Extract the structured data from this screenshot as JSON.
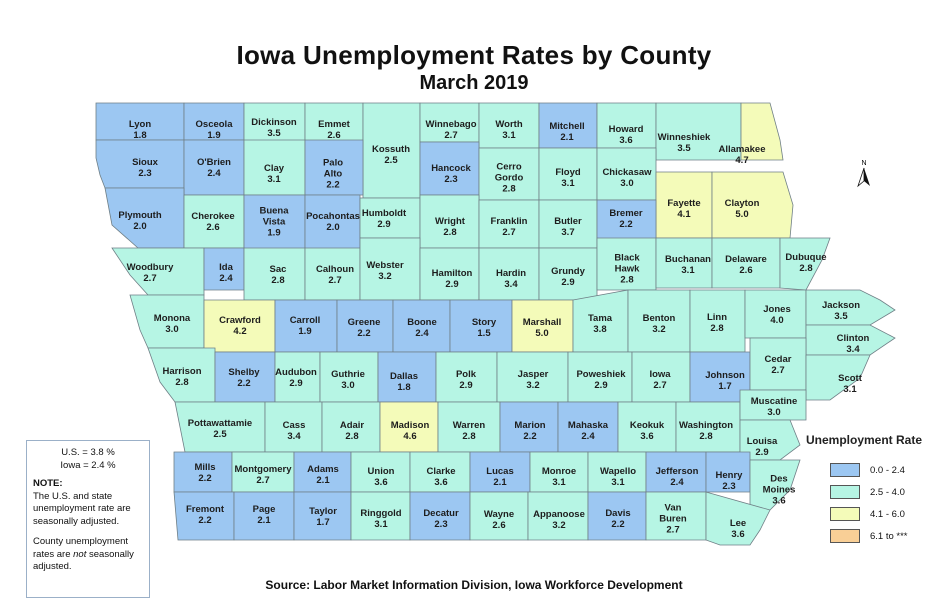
{
  "title": "Iowa Unemployment Rates by County",
  "subtitle": "March 2019",
  "source": "Source: Labor Market Information Division, Iowa Workforce Development",
  "north_label": "N",
  "note": {
    "us_rate": "U.S. = 3.8 %",
    "iowa_rate": "Iowa = 2.4 %",
    "heading": "NOTE:",
    "text1": "The U.S. and state unemployment rate are seasonally adjusted.",
    "text2_a": "County unemployment rates are ",
    "text2_em": "not",
    "text2_b": " seasonally adjusted."
  },
  "legend": {
    "title": "Unemployment Rate",
    "items": [
      {
        "label": "0.0 - 2.4",
        "color": "#9cc7f2"
      },
      {
        "label": "2.5 - 4.0",
        "color": "#b6f5e4"
      },
      {
        "label": "4.1 - 6.0",
        "color": "#f4fbb9"
      },
      {
        "label": "6.1 to ***",
        "color": "#f9cf96"
      }
    ]
  },
  "counties": [
    {
      "name": "Lyon",
      "value": "1.8"
    },
    {
      "name": "Osceola",
      "value": "1.9"
    },
    {
      "name": "Dickinson",
      "value": "3.5"
    },
    {
      "name": "Emmet",
      "value": "2.6"
    },
    {
      "name": "Kossuth",
      "value": "2.5"
    },
    {
      "name": "Winnebago",
      "value": "2.7"
    },
    {
      "name": "Worth",
      "value": "3.1"
    },
    {
      "name": "Mitchell",
      "value": "2.1"
    },
    {
      "name": "Howard",
      "value": "3.6"
    },
    {
      "name": "Winneshiek",
      "value": "3.5"
    },
    {
      "name": "Allamakee",
      "value": "4.7"
    },
    {
      "name": "Sioux",
      "value": "2.3"
    },
    {
      "name": "O'Brien",
      "value": "2.4"
    },
    {
      "name": "Clay",
      "value": "3.1"
    },
    {
      "name": "Palo Alto",
      "value": "2.2"
    },
    {
      "name": "Hancock",
      "value": "2.3"
    },
    {
      "name": "Cerro Gordo",
      "value": "2.8"
    },
    {
      "name": "Floyd",
      "value": "3.1"
    },
    {
      "name": "Chickasaw",
      "value": "3.0"
    },
    {
      "name": "Fayette",
      "value": "4.1"
    },
    {
      "name": "Clayton",
      "value": "5.0"
    },
    {
      "name": "Plymouth",
      "value": "2.0"
    },
    {
      "name": "Cherokee",
      "value": "2.6"
    },
    {
      "name": "Buena Vista",
      "value": "1.9"
    },
    {
      "name": "Pocahontas",
      "value": "2.0"
    },
    {
      "name": "Humboldt",
      "value": "2.9"
    },
    {
      "name": "Wright",
      "value": "2.8"
    },
    {
      "name": "Franklin",
      "value": "2.7"
    },
    {
      "name": "Butler",
      "value": "3.7"
    },
    {
      "name": "Bremer",
      "value": "2.2"
    },
    {
      "name": "Woodbury",
      "value": "2.7"
    },
    {
      "name": "Ida",
      "value": "2.4"
    },
    {
      "name": "Sac",
      "value": "2.8"
    },
    {
      "name": "Calhoun",
      "value": "2.7"
    },
    {
      "name": "Webster",
      "value": "3.2"
    },
    {
      "name": "Hamilton",
      "value": "2.9"
    },
    {
      "name": "Hardin",
      "value": "3.4"
    },
    {
      "name": "Grundy",
      "value": "2.9"
    },
    {
      "name": "Black Hawk",
      "value": "2.8"
    },
    {
      "name": "Buchanan",
      "value": "3.1"
    },
    {
      "name": "Delaware",
      "value": "2.6"
    },
    {
      "name": "Dubuque",
      "value": "2.8"
    },
    {
      "name": "Monona",
      "value": "3.0"
    },
    {
      "name": "Crawford",
      "value": "4.2"
    },
    {
      "name": "Carroll",
      "value": "1.9"
    },
    {
      "name": "Greene",
      "value": "2.2"
    },
    {
      "name": "Boone",
      "value": "2.4"
    },
    {
      "name": "Story",
      "value": "1.5"
    },
    {
      "name": "Marshall",
      "value": "5.0"
    },
    {
      "name": "Tama",
      "value": "3.8"
    },
    {
      "name": "Benton",
      "value": "3.2"
    },
    {
      "name": "Linn",
      "value": "2.8"
    },
    {
      "name": "Jones",
      "value": "4.0"
    },
    {
      "name": "Jackson",
      "value": "3.5"
    },
    {
      "name": "Clinton",
      "value": "3.4"
    },
    {
      "name": "Harrison",
      "value": "2.8"
    },
    {
      "name": "Shelby",
      "value": "2.2"
    },
    {
      "name": "Audubon",
      "value": "2.9"
    },
    {
      "name": "Guthrie",
      "value": "3.0"
    },
    {
      "name": "Dallas",
      "value": "1.8"
    },
    {
      "name": "Polk",
      "value": "2.9"
    },
    {
      "name": "Jasper",
      "value": "3.2"
    },
    {
      "name": "Poweshiek",
      "value": "2.9"
    },
    {
      "name": "Iowa",
      "value": "2.7"
    },
    {
      "name": "Johnson",
      "value": "1.7"
    },
    {
      "name": "Cedar",
      "value": "2.7"
    },
    {
      "name": "Scott",
      "value": "3.1"
    },
    {
      "name": "Pottawattamie",
      "value": "2.5"
    },
    {
      "name": "Cass",
      "value": "3.4"
    },
    {
      "name": "Adair",
      "value": "2.8"
    },
    {
      "name": "Madison",
      "value": "4.6"
    },
    {
      "name": "Warren",
      "value": "2.8"
    },
    {
      "name": "Marion",
      "value": "2.2"
    },
    {
      "name": "Mahaska",
      "value": "2.4"
    },
    {
      "name": "Keokuk",
      "value": "3.6"
    },
    {
      "name": "Washington",
      "value": "2.8"
    },
    {
      "name": "Muscatine",
      "value": "3.0"
    },
    {
      "name": "Louisa",
      "value": "2.9"
    },
    {
      "name": "Mills",
      "value": "2.2"
    },
    {
      "name": "Montgomery",
      "value": "2.7"
    },
    {
      "name": "Adams",
      "value": "2.1"
    },
    {
      "name": "Union",
      "value": "3.6"
    },
    {
      "name": "Clarke",
      "value": "3.6"
    },
    {
      "name": "Lucas",
      "value": "2.1"
    },
    {
      "name": "Monroe",
      "value": "3.1"
    },
    {
      "name": "Wapello",
      "value": "3.1"
    },
    {
      "name": "Jefferson",
      "value": "2.4"
    },
    {
      "name": "Henry",
      "value": "2.3"
    },
    {
      "name": "Des Moines",
      "value": "3.6"
    },
    {
      "name": "Fremont",
      "value": "2.2"
    },
    {
      "name": "Page",
      "value": "2.1"
    },
    {
      "name": "Taylor",
      "value": "1.7"
    },
    {
      "name": "Ringgold",
      "value": "3.1"
    },
    {
      "name": "Decatur",
      "value": "2.3"
    },
    {
      "name": "Wayne",
      "value": "2.6"
    },
    {
      "name": "Appanoose",
      "value": "3.2"
    },
    {
      "name": "Davis",
      "value": "2.2"
    },
    {
      "name": "Van Buren",
      "value": "2.7"
    },
    {
      "name": "Lee",
      "value": "3.6"
    }
  ]
}
